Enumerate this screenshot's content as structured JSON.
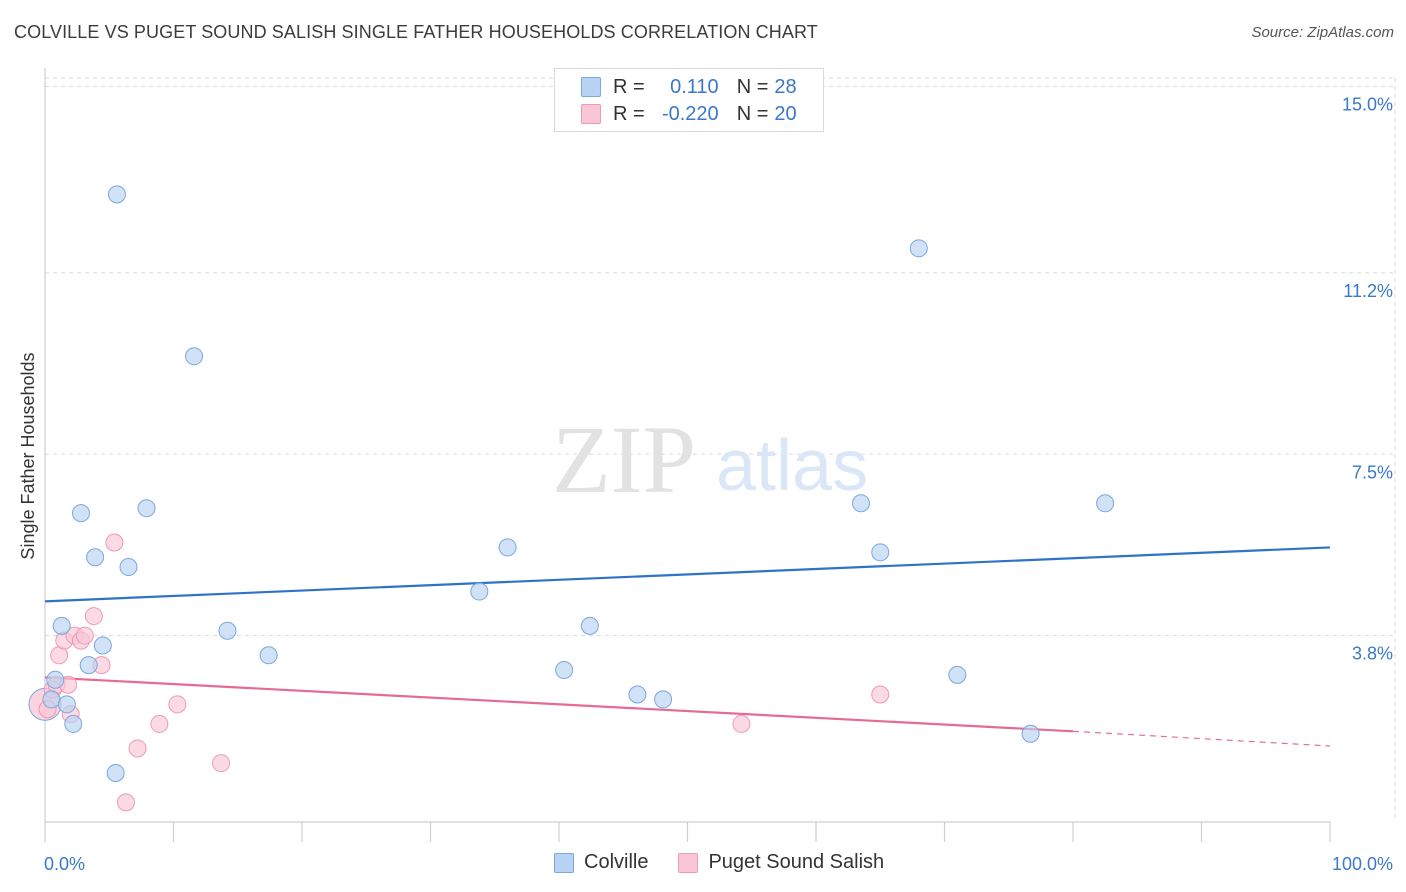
{
  "header": {
    "title": "COLVILLE VS PUGET SOUND SALISH SINGLE FATHER HOUSEHOLDS CORRELATION CHART",
    "source": "Source: ZipAtlas.com"
  },
  "legend": {
    "rows": [
      {
        "r_label": "R =",
        "r_value": "0.110",
        "n_label": "N =",
        "n_value": "28"
      },
      {
        "r_label": "R =",
        "r_value": "-0.220",
        "n_label": "N =",
        "n_value": "20"
      }
    ]
  },
  "colors": {
    "colville_fill": "#b8d3f3",
    "colville_stroke": "#7aa7de",
    "colville_line": "#2f73c9",
    "salish_fill": "#f9c6d6",
    "salish_stroke": "#ee9ab5",
    "salish_line": "#e56b95",
    "axis_label": "#3a78c9",
    "grid": "#dadada"
  },
  "chart_data": {
    "type": "scatter",
    "title": "COLVILLE VS PUGET SOUND SALISH SINGLE FATHER HOUSEHOLDS CORRELATION CHART",
    "xlabel": "",
    "ylabel": "Single Father Households",
    "xlim": [
      0,
      100
    ],
    "ylim": [
      0,
      15.5
    ],
    "x_tick_labels": [
      "0.0%",
      "100.0%"
    ],
    "y_ticks": [
      3.8,
      7.5,
      11.2,
      15.0
    ],
    "y_tick_labels": [
      "3.8%",
      "7.5%",
      "11.2%",
      "15.0%"
    ],
    "watermark": "ZIPatlas",
    "series": [
      {
        "name": "Colville",
        "R": 0.11,
        "N": 28,
        "points": [
          [
            0.5,
            2.5
          ],
          [
            0.8,
            2.9
          ],
          [
            1.3,
            4.0
          ],
          [
            1.7,
            2.4
          ],
          [
            2.2,
            2.0
          ],
          [
            2.8,
            6.3
          ],
          [
            3.4,
            3.2
          ],
          [
            3.9,
            5.4
          ],
          [
            4.5,
            3.6
          ],
          [
            5.5,
            1.0
          ],
          [
            5.6,
            12.8
          ],
          [
            6.5,
            5.2
          ],
          [
            7.9,
            6.4
          ],
          [
            11.6,
            9.5
          ],
          [
            14.2,
            3.9
          ],
          [
            17.4,
            3.4
          ],
          [
            33.8,
            4.7
          ],
          [
            36.0,
            5.6
          ],
          [
            40.4,
            3.1
          ],
          [
            42.4,
            4.0
          ],
          [
            46.1,
            2.6
          ],
          [
            48.1,
            2.5
          ],
          [
            63.5,
            6.5
          ],
          [
            65.0,
            5.5
          ],
          [
            68.0,
            11.7
          ],
          [
            71.0,
            3.0
          ],
          [
            76.7,
            1.8
          ],
          [
            82.5,
            6.5
          ]
        ],
        "trend": {
          "x": [
            0,
            100
          ],
          "y": [
            4.5,
            5.6
          ]
        }
      },
      {
        "name": "Puget Sound Salish",
        "R": -0.22,
        "N": 20,
        "points": [
          [
            0.2,
            2.3
          ],
          [
            0.6,
            2.7
          ],
          [
            0.9,
            2.8
          ],
          [
            1.1,
            3.4
          ],
          [
            1.5,
            3.7
          ],
          [
            1.8,
            2.8
          ],
          [
            2.0,
            2.2
          ],
          [
            2.3,
            3.8
          ],
          [
            2.8,
            3.7
          ],
          [
            3.1,
            3.8
          ],
          [
            3.8,
            4.2
          ],
          [
            4.4,
            3.2
          ],
          [
            5.4,
            5.7
          ],
          [
            6.3,
            0.4
          ],
          [
            7.2,
            1.5
          ],
          [
            8.9,
            2.0
          ],
          [
            10.3,
            2.4
          ],
          [
            13.7,
            1.2
          ],
          [
            54.2,
            2.0
          ],
          [
            65.0,
            2.6
          ]
        ],
        "trend": {
          "x": [
            0,
            80
          ],
          "y": [
            2.95,
            1.85
          ]
        },
        "trend_extension": {
          "x": [
            80,
            100
          ],
          "y": [
            1.85,
            1.55
          ]
        }
      }
    ]
  },
  "bottom_legend": {
    "items": [
      {
        "label": "Colville"
      },
      {
        "label": "Puget Sound Salish"
      }
    ]
  }
}
